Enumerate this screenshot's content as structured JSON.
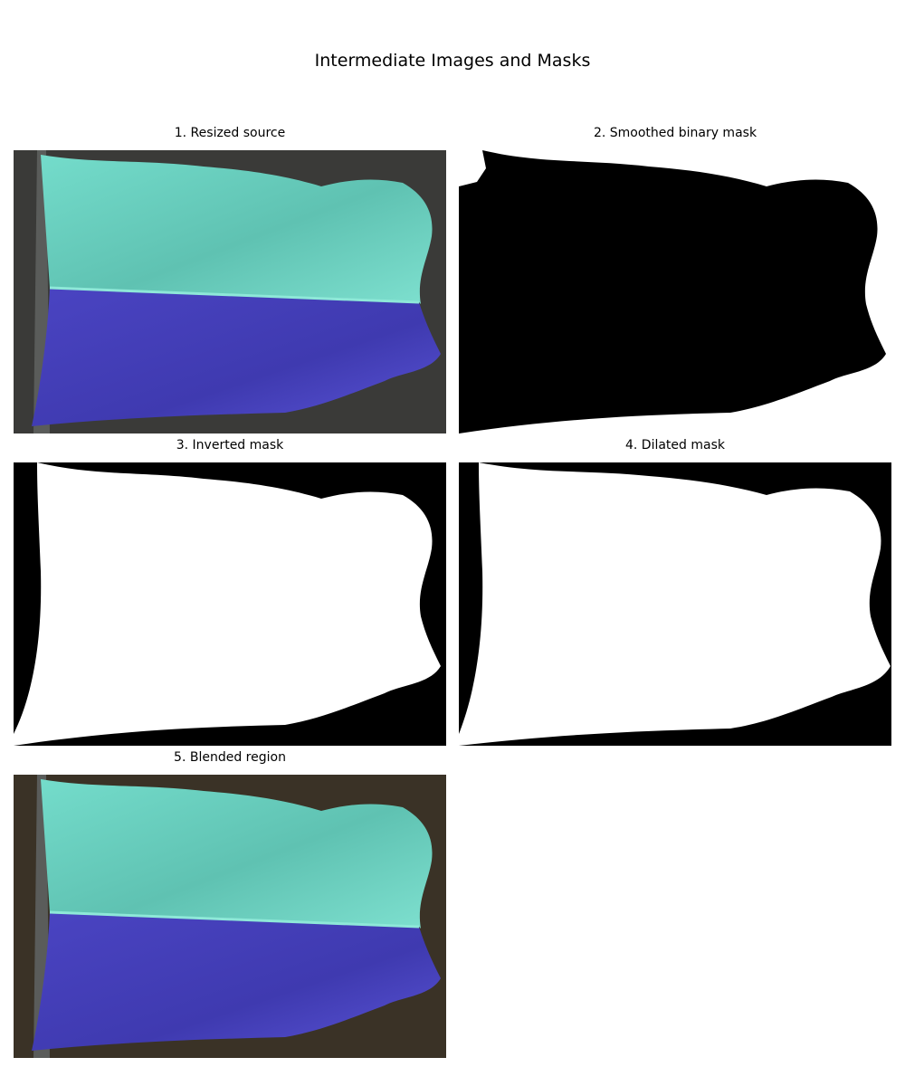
{
  "figure": {
    "title": "Intermediate Images and Masks"
  },
  "panels": [
    {
      "title": "1. Resized source"
    },
    {
      "title": "2. Smoothed binary mask"
    },
    {
      "title": "3. Inverted mask"
    },
    {
      "title": "4. Dilated mask"
    },
    {
      "title": "5. Blended region"
    }
  ],
  "colors": {
    "source_background": "#3a3a38",
    "blended_background": "#3a3226",
    "flag_upper": "#6fd6c4",
    "flag_lower": "#4e48c8",
    "mask_black": "#000000",
    "mask_white": "#ffffff"
  }
}
